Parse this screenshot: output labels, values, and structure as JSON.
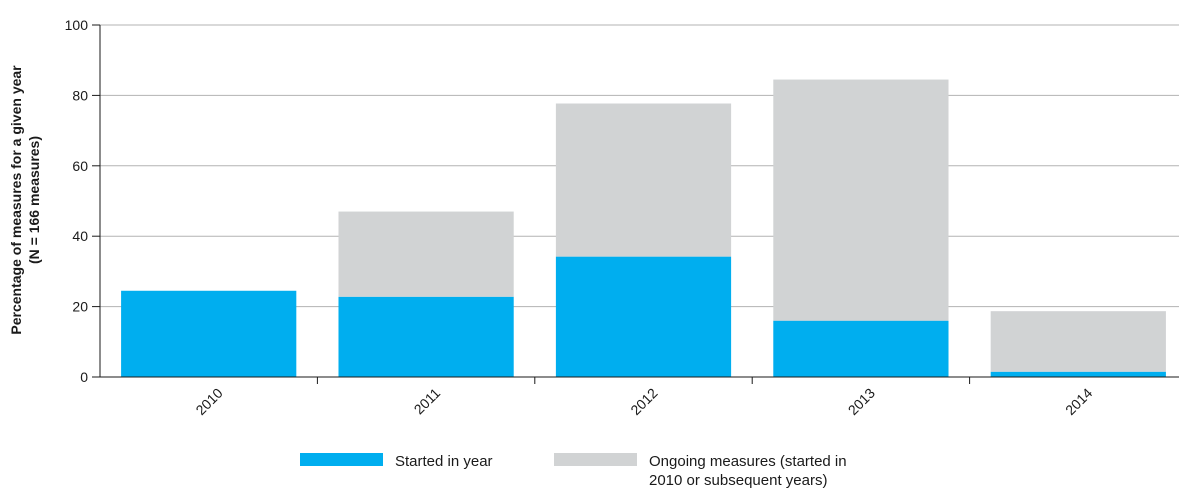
{
  "chart_data": {
    "type": "bar",
    "stacked": true,
    "categories": [
      "2010",
      "2011",
      "2012",
      "2013",
      "2014"
    ],
    "series": [
      {
        "name": "Started in year",
        "color": "#00aeef",
        "values": [
          24.5,
          22.8,
          34.2,
          16.0,
          1.5
        ]
      },
      {
        "name": "Ongoing measures (started in 2010 or subsequent years)",
        "color": "#d1d3d4",
        "values": [
          0,
          24.2,
          43.5,
          68.5,
          17.2
        ]
      }
    ],
    "ylabel_lines": [
      "Percentage of measures for a given year",
      "(N = 166 measures)"
    ],
    "xlabel": "",
    "ylim": [
      0,
      100
    ],
    "yticks": [
      "0",
      "20",
      "40",
      "60",
      "80",
      "100"
    ],
    "grid": true,
    "legend_position": "bottom"
  },
  "legend": {
    "started_label": "Started in year",
    "ongoing_label_line1": "Ongoing measures (started in",
    "ongoing_label_line2": "2010 or subsequent years)"
  }
}
